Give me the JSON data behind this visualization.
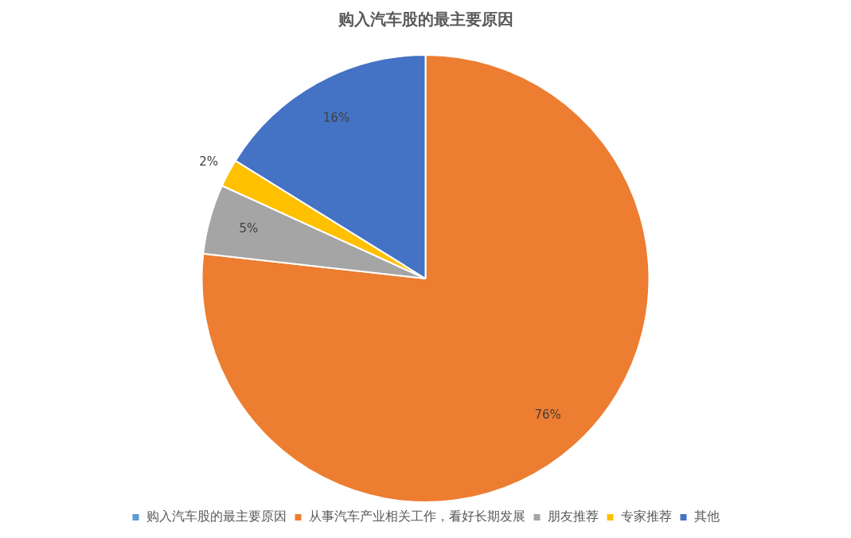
{
  "chart_data": {
    "type": "pie",
    "title": "购入汽车股的最主要原因",
    "categories": [
      "购入汽车股的最主要原因",
      "从事汽车产业相关工作，看好长期发展",
      "朋友推荐",
      "专家推荐",
      "其他"
    ],
    "values": [
      0,
      76,
      5,
      2,
      16
    ],
    "colors": [
      "#5b9bd5",
      "#ed7d31",
      "#a5a5a5",
      "#ffc000",
      "#4472c4"
    ],
    "value_labels": [
      null,
      "76%",
      "5%",
      "2%",
      "16%"
    ],
    "legend": "bottom"
  }
}
